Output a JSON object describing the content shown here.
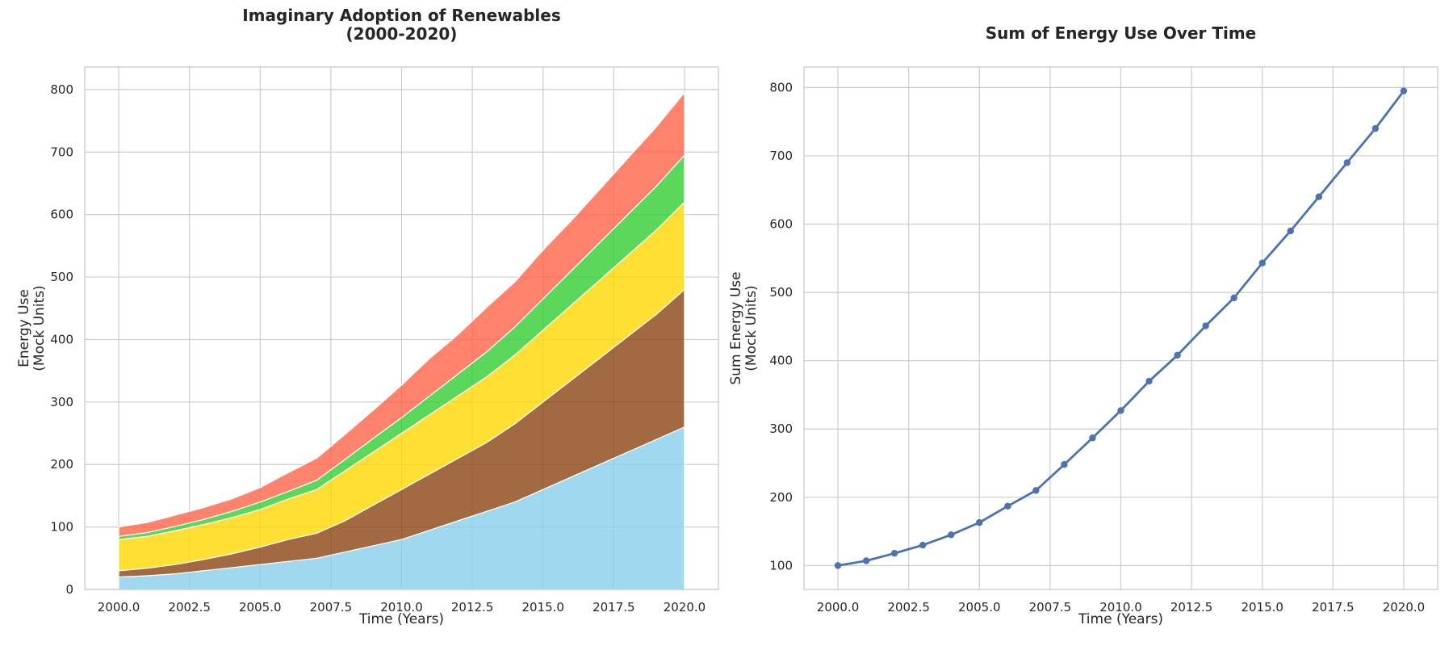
{
  "chart_data": [
    {
      "type": "area",
      "stacked": true,
      "title_lines": [
        "Imaginary Adoption of Renewables",
        "(2000-2020)"
      ],
      "xlabel": "Time (Years)",
      "ylabel_lines": [
        "Energy Use",
        "(Mock Units)"
      ],
      "x": [
        2000,
        2001,
        2002,
        2003,
        2004,
        2005,
        2006,
        2007,
        2008,
        2009,
        2010,
        2011,
        2012,
        2013,
        2014,
        2015,
        2016,
        2017,
        2018,
        2019,
        2020
      ],
      "xlim": [
        1998.8,
        2021.2
      ],
      "ylim": [
        0,
        836
      ],
      "xticks": [
        2000,
        2002.5,
        2005,
        2007.5,
        2010,
        2012.5,
        2015,
        2017.5,
        2020
      ],
      "yticks": [
        0,
        100,
        200,
        300,
        400,
        500,
        600,
        700,
        800
      ],
      "grid": true,
      "series": [
        {
          "color": "#87ceeb",
          "values": [
            20,
            22,
            25,
            30,
            35,
            40,
            45,
            50,
            60,
            70,
            80,
            95,
            110,
            125,
            140,
            160,
            180,
            200,
            220,
            240,
            260
          ]
        },
        {
          "color": "#8b4513",
          "values": [
            10,
            12,
            15,
            18,
            22,
            28,
            35,
            40,
            50,
            65,
            80,
            90,
            100,
            110,
            125,
            140,
            155,
            170,
            185,
            200,
            220
          ]
        },
        {
          "color": "#ffd700",
          "values": [
            50,
            51,
            54,
            56,
            58,
            60,
            65,
            70,
            80,
            85,
            90,
            95,
            100,
            105,
            110,
            115,
            120,
            125,
            130,
            135,
            140
          ]
        },
        {
          "color": "#32cd32",
          "values": [
            5,
            6,
            7,
            8,
            10,
            12,
            12,
            15,
            18,
            22,
            25,
            30,
            35,
            40,
            45,
            50,
            55,
            60,
            65,
            70,
            75
          ]
        },
        {
          "color": "#ff6347",
          "values": [
            15,
            16,
            18,
            19,
            20,
            23,
            30,
            35,
            40,
            45,
            52,
            60,
            63,
            71,
            72,
            78,
            80,
            85,
            90,
            95,
            100
          ]
        }
      ]
    },
    {
      "type": "line",
      "title": "Sum of Energy Use Over Time",
      "xlabel": "Time (Years)",
      "ylabel_lines": [
        "Sum Energy Use",
        "(Mock Units)"
      ],
      "x": [
        2000,
        2001,
        2002,
        2003,
        2004,
        2005,
        2006,
        2007,
        2008,
        2009,
        2010,
        2011,
        2012,
        2013,
        2014,
        2015,
        2016,
        2017,
        2018,
        2019,
        2020
      ],
      "xlim": [
        1998.8,
        2021.2
      ],
      "ylim": [
        65,
        830
      ],
      "xticks": [
        2000,
        2002.5,
        2005,
        2007.5,
        2010,
        2012.5,
        2015,
        2017.5,
        2020
      ],
      "yticks": [
        100,
        200,
        300,
        400,
        500,
        600,
        700,
        800
      ],
      "grid": true,
      "series": [
        {
          "color": "#4c72b0",
          "values": [
            100,
            107,
            118,
            130,
            145,
            163,
            187,
            210,
            248,
            287,
            327,
            370,
            408,
            451,
            492,
            543,
            590,
            640,
            690,
            740,
            795
          ]
        }
      ]
    }
  ]
}
